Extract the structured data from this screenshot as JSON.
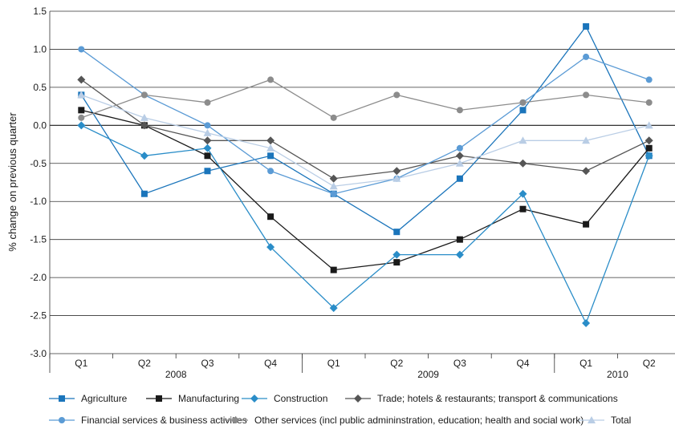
{
  "chart_data": {
    "type": "line",
    "ylabel": "% change on previous quarter",
    "ylim": [
      -3.0,
      1.5
    ],
    "ytick_step": 0.5,
    "yticks": [
      "1.5",
      "1.0",
      "0.5",
      "0.0",
      "-0.5",
      "-1.0",
      "-1.5",
      "-2.0",
      "-2.5",
      "-3.0"
    ],
    "categories": [
      "Q1",
      "Q2",
      "Q3",
      "Q4",
      "Q1",
      "Q2",
      "Q3",
      "Q4",
      "Q1",
      "Q2"
    ],
    "year_groups": [
      {
        "label": "2008",
        "start": 0,
        "end": 3
      },
      {
        "label": "2009",
        "start": 4,
        "end": 7
      },
      {
        "label": "2010",
        "start": 8,
        "end": 9
      }
    ],
    "grid": true,
    "legend_position": "bottom",
    "series": [
      {
        "name": "Agriculture",
        "color": "#1b75bb",
        "marker": "square",
        "values": [
          0.4,
          -0.9,
          -0.6,
          -0.4,
          -0.9,
          -1.4,
          -0.7,
          0.2,
          1.3,
          -0.4
        ]
      },
      {
        "name": "Manufacturing",
        "color": "#1a1a1a",
        "marker": "square",
        "values": [
          0.2,
          0.0,
          -0.4,
          -1.2,
          -1.9,
          -1.8,
          -1.5,
          -1.1,
          -1.3,
          -0.3
        ]
      },
      {
        "name": "Construction",
        "color": "#2a8dc8",
        "marker": "diamond",
        "values": [
          0.0,
          -0.4,
          -0.3,
          -1.6,
          -2.4,
          -1.7,
          -1.7,
          -0.9,
          -2.6,
          -0.4
        ]
      },
      {
        "name": "Trade; hotels & restaurants; transport & communications",
        "color": "#555555",
        "marker": "diamond",
        "values": [
          0.6,
          0.0,
          -0.2,
          -0.2,
          -0.7,
          -0.6,
          -0.4,
          -0.5,
          -0.6,
          -0.2
        ]
      },
      {
        "name": "Financial services & business activities",
        "color": "#5b9bd5",
        "marker": "circle",
        "values": [
          1.0,
          0.4,
          0.0,
          -0.6,
          -0.9,
          -0.7,
          -0.3,
          0.3,
          0.9,
          0.6
        ]
      },
      {
        "name": "Other services (incl public admininstration, education; health and social work)",
        "color": "#8c8c8c",
        "marker": "circle",
        "values": [
          0.1,
          0.4,
          0.3,
          0.6,
          0.1,
          0.4,
          0.2,
          0.3,
          0.4,
          0.3
        ]
      },
      {
        "name": "Total",
        "color": "#b9cde5",
        "marker": "triangle",
        "values": [
          0.4,
          0.1,
          -0.1,
          -0.3,
          -0.8,
          -0.7,
          -0.5,
          -0.2,
          -0.2,
          0.0
        ]
      }
    ]
  }
}
